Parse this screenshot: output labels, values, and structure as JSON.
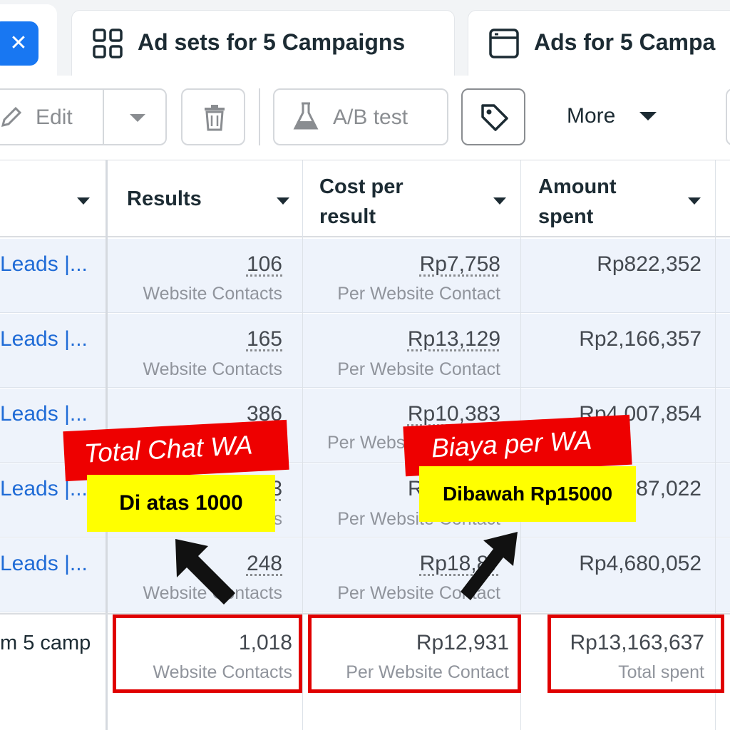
{
  "tabs": {
    "close_glyph": "✕",
    "adsets_label": "Ad sets for 5 Campaigns",
    "ads_label": "Ads for 5 Campa"
  },
  "toolbar": {
    "edit_label": "Edit",
    "ab_test_label": "A/B test",
    "more_label": "More"
  },
  "columns": {
    "results": "Results",
    "cost_per_result_line1": "Cost per",
    "cost_per_result_line2": "result",
    "amount_spent_line1": "Amount",
    "amount_spent_line2": "spent"
  },
  "rows": [
    {
      "name": "Leads |...",
      "results": "106",
      "results_sub": "Website Contacts",
      "cost": "Rp7,758",
      "cost_sub": "Per Website Contact",
      "spent": "Rp822,352"
    },
    {
      "name": "Leads |...",
      "results": "165",
      "results_sub": "Website Contacts",
      "cost": "Rp13,129",
      "cost_sub": "Per Website Contact",
      "spent": "Rp2,166,357"
    },
    {
      "name": "Leads |...",
      "results": "386",
      "results_sub": "",
      "cost": "Rp10,383",
      "cost_sub": "Per Webs",
      "spent": "Rp4,007,854"
    },
    {
      "name": "Leads |...",
      "results": "3",
      "results_sub": "s",
      "cost": "R",
      "cost_sub": "Per Website Contact",
      "spent": "87,022"
    },
    {
      "name": "Leads |...",
      "results": "248",
      "results_sub": "Website Contacts",
      "cost": "Rp18,87",
      "cost_sub": "Per Website Contact",
      "spent": "Rp4,680,052"
    }
  ],
  "totals": {
    "name": "m 5 camp",
    "results": "1,018",
    "results_sub": "Website Contacts",
    "cost": "Rp12,931",
    "cost_sub": "Per Website Contact",
    "spent": "Rp13,163,637",
    "spent_sub": "Total spent"
  },
  "annotations": {
    "total_chat_label": "Total Chat WA",
    "total_chat_note": "Di atas 1000",
    "cost_label": "Biaya per WA",
    "cost_note": "Dibawah Rp15000"
  },
  "colors": {
    "accent": "#1877f2",
    "highlight_red": "#e00000",
    "note_yellow": "#ffff00",
    "row_bg": "#eef3fb",
    "link_blue": "#1f6bd6"
  }
}
